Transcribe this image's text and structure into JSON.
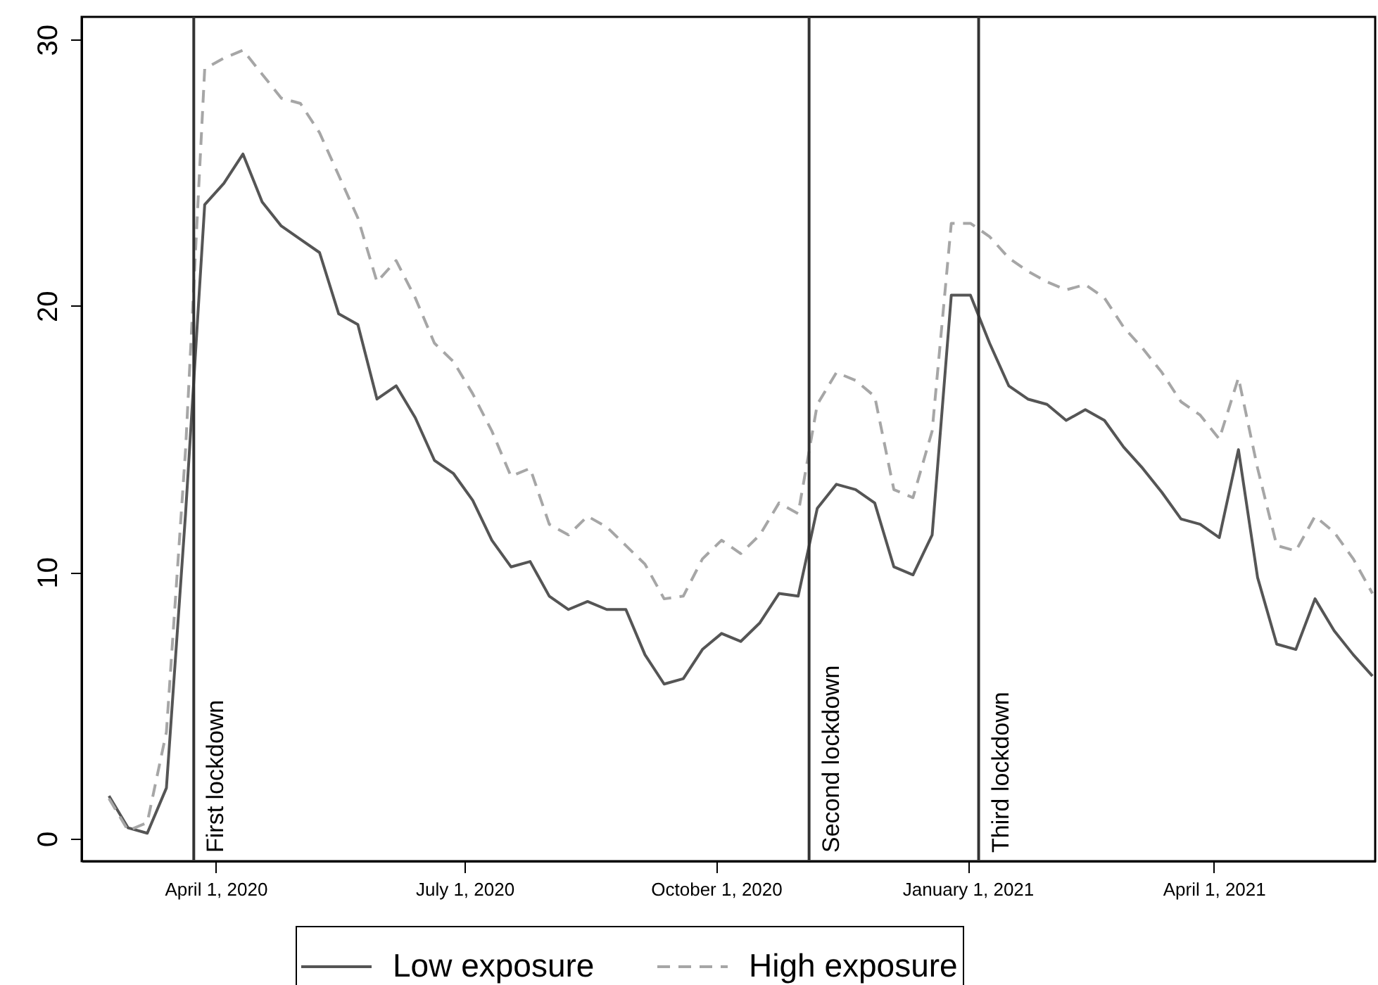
{
  "chart_data": {
    "type": "line",
    "x": [
      "2020-02-22",
      "2020-02-29",
      "2020-03-07",
      "2020-03-14",
      "2020-03-21",
      "2020-03-28",
      "2020-04-04",
      "2020-04-11",
      "2020-04-18",
      "2020-04-25",
      "2020-05-02",
      "2020-05-09",
      "2020-05-16",
      "2020-05-23",
      "2020-05-30",
      "2020-06-06",
      "2020-06-13",
      "2020-06-20",
      "2020-06-27",
      "2020-07-04",
      "2020-07-11",
      "2020-07-18",
      "2020-07-25",
      "2020-08-01",
      "2020-08-08",
      "2020-08-15",
      "2020-08-22",
      "2020-08-29",
      "2020-09-05",
      "2020-09-12",
      "2020-09-19",
      "2020-09-26",
      "2020-10-03",
      "2020-10-10",
      "2020-10-17",
      "2020-10-24",
      "2020-10-31",
      "2020-11-07",
      "2020-11-14",
      "2020-11-21",
      "2020-11-28",
      "2020-12-05",
      "2020-12-12",
      "2020-12-19",
      "2020-12-26",
      "2021-01-02",
      "2021-01-09",
      "2021-01-16",
      "2021-01-23",
      "2021-01-30",
      "2021-02-06",
      "2021-02-13",
      "2021-02-20",
      "2021-02-27",
      "2021-03-06",
      "2021-03-13",
      "2021-03-20",
      "2021-03-27",
      "2021-04-03",
      "2021-04-10",
      "2021-04-17",
      "2021-04-24",
      "2021-05-01",
      "2021-05-08",
      "2021-05-15",
      "2021-05-22",
      "2021-05-29"
    ],
    "series": [
      {
        "name": "Low exposure",
        "color": "#555555",
        "line_style": "solid",
        "values": [
          1.6,
          0.4,
          0.2,
          1.9,
          12.2,
          23.8,
          24.6,
          25.7,
          23.9,
          23.0,
          22.5,
          22.0,
          19.7,
          19.3,
          16.5,
          17.0,
          15.8,
          14.2,
          13.7,
          12.7,
          11.2,
          10.2,
          10.4,
          9.1,
          8.6,
          8.9,
          8.6,
          8.6,
          6.9,
          5.8,
          6.0,
          7.1,
          7.7,
          7.4,
          8.1,
          9.2,
          9.1,
          12.4,
          13.3,
          13.1,
          12.6,
          10.2,
          9.9,
          11.4,
          20.4,
          20.4,
          18.6,
          17.0,
          16.5,
          16.3,
          15.7,
          16.1,
          15.7,
          14.7,
          13.9,
          13.0,
          12.0,
          11.8,
          11.3,
          14.6,
          9.8,
          7.3,
          7.1,
          9.0,
          7.8,
          6.9,
          6.1
        ]
      },
      {
        "name": "High exposure",
        "color": "#a6a6a6",
        "line_style": "dashed",
        "values": [
          1.5,
          0.3,
          0.6,
          4.0,
          14.6,
          28.9,
          29.3,
          29.6,
          28.7,
          27.8,
          27.6,
          26.5,
          24.9,
          23.3,
          20.9,
          21.7,
          20.3,
          18.6,
          17.9,
          16.7,
          15.3,
          13.6,
          13.9,
          11.8,
          11.4,
          12.1,
          11.7,
          11.0,
          10.3,
          9.0,
          9.1,
          10.5,
          11.2,
          10.7,
          11.4,
          12.6,
          12.2,
          16.3,
          17.5,
          17.2,
          16.6,
          13.1,
          12.8,
          15.3,
          23.1,
          23.1,
          22.6,
          21.8,
          21.3,
          20.9,
          20.6,
          20.8,
          20.3,
          19.2,
          18.4,
          17.5,
          16.4,
          15.9,
          15.0,
          17.3,
          13.9,
          11.0,
          10.8,
          12.1,
          11.5,
          10.5,
          9.2
        ]
      }
    ],
    "xlim": [
      "2020-02-12",
      "2021-05-30"
    ],
    "xticks": [
      {
        "value": "2020-04-01",
        "label": "April 1, 2020"
      },
      {
        "value": "2020-07-01",
        "label": "July 1, 2020"
      },
      {
        "value": "2020-10-01",
        "label": "October 1, 2020"
      },
      {
        "value": "2021-01-01",
        "label": "January 1, 2021"
      },
      {
        "value": "2021-04-01",
        "label": "April 1, 2021"
      }
    ],
    "ylim": [
      -0.85,
      30.85
    ],
    "yticks": [
      0,
      10,
      20,
      30
    ],
    "ref_lines": [
      {
        "axis": "x",
        "value": "2020-03-24",
        "label": "First lockdown",
        "color": "#333333"
      },
      {
        "axis": "x",
        "value": "2020-11-04",
        "label": "Second lockdown",
        "color": "#333333"
      },
      {
        "axis": "x",
        "value": "2021-01-05",
        "label": "Third lockdown",
        "color": "#333333"
      }
    ],
    "legend": "bottom"
  }
}
